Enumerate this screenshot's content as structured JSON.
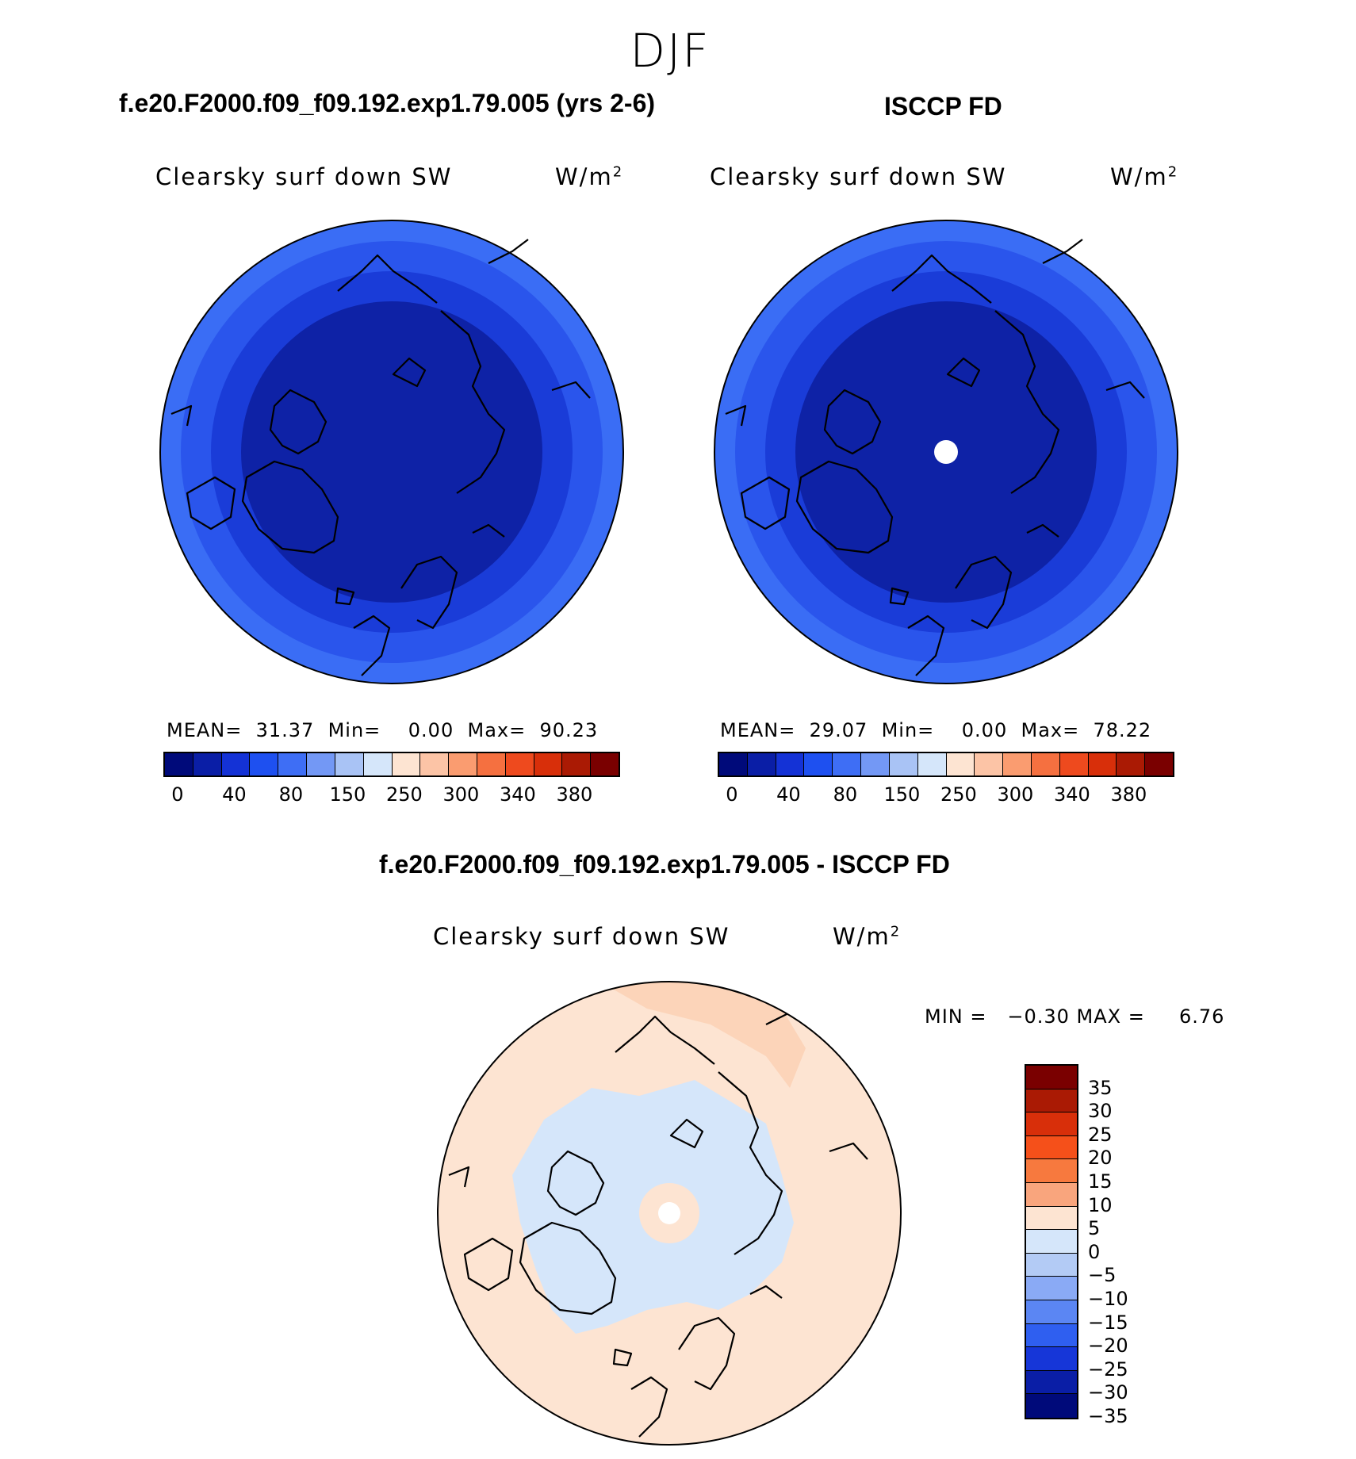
{
  "title": "DJF",
  "panels": [
    {
      "heading": "f.e20.F2000.f09_f09.192.exp1.79.005 (yrs 2-6)",
      "variable": "Clearsky surf down SW",
      "units": "W/m",
      "units_sup": "2",
      "stats": "MEAN=  31.37  Min=    0.00  Max=  90.23",
      "mean": 31.37,
      "min": 0.0,
      "max": 90.23,
      "rings": [
        "#3a6df5",
        "#2a55ec",
        "#1a3cd8",
        "#0e22a6"
      ],
      "has_pole_hole": false
    },
    {
      "heading": "ISCCP FD",
      "variable": "Clearsky surf down SW",
      "units": "W/m",
      "units_sup": "2",
      "stats": "MEAN=  29.07  Min=    0.00  Max=  78.22",
      "mean": 29.07,
      "min": 0.0,
      "max": 78.22,
      "rings": [
        "#3a6df5",
        "#2a55ec",
        "#1a3cd8",
        "#0e22a6"
      ],
      "has_pole_hole": true
    }
  ],
  "colorbar_top": {
    "colors": [
      "#000a7a",
      "#0a1ea6",
      "#1432d6",
      "#1e50f0",
      "#3e6ef5",
      "#7398f5",
      "#a9c3f5",
      "#d5e6fa",
      "#fde4d2",
      "#fcc4a6",
      "#fa9c70",
      "#f57040",
      "#ee4a1e",
      "#d82f0a",
      "#aa1a04",
      "#7a0000"
    ],
    "tick_labels": [
      "0",
      "40",
      "80",
      "150",
      "250",
      "300",
      "340",
      "380"
    ]
  },
  "difference": {
    "heading": "f.e20.F2000.f09_f09.192.exp1.79.005 - ISCCP FD",
    "variable": "Clearsky surf down SW",
    "units": "W/m",
    "units_sup": "2",
    "stats": "MIN =   −0.30 MAX =     6.76",
    "min": -0.3,
    "max": 6.76,
    "colorbar": {
      "colors": [
        "#7a0000",
        "#aa1a04",
        "#d82f0a",
        "#f5501a",
        "#f7793e",
        "#f9a57d",
        "#fde4d2",
        "#d5e6fa",
        "#b3cbf5",
        "#8aaaf5",
        "#5b86f3",
        "#2f5ff0",
        "#1636d8",
        "#0a1ea6",
        "#000a7a"
      ],
      "tick_labels": [
        "35",
        "30",
        "25",
        "20",
        "15",
        "10",
        "5",
        "0",
        "−5",
        "−10",
        "−15",
        "−20",
        "−25",
        "−30",
        "−35"
      ]
    }
  }
}
